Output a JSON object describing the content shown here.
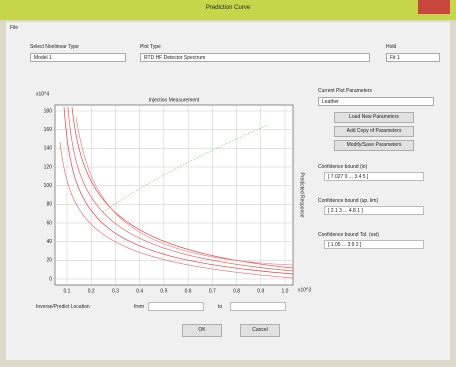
{
  "window": {
    "title": "Prediction Curve",
    "menu": [
      "File"
    ]
  },
  "controls": {
    "type_label": "Select Nonlinear Type",
    "type_value": "Model 1",
    "plot_label": "Plot Type",
    "plot_value": "RTD HF Detector Spectrum",
    "hold_label": "Hold",
    "hold_value": "Fit 1"
  },
  "plot": {
    "title": "Injection Measurement",
    "y_exponent": "x10^4",
    "x_exponent": "x10^3",
    "y_label": "Predicted Response",
    "yticks": [
      "180",
      "160",
      "140",
      "120",
      "100",
      "80",
      "60",
      "40",
      "20",
      "0"
    ],
    "xticks": [
      "0.1",
      "0.2",
      "0.3",
      "0.4",
      "0.5",
      "0.6",
      "0.7",
      "0.8",
      "0.9",
      "1.0"
    ]
  },
  "panel": {
    "params_label": "Current Plot Parameters",
    "params_value": "Leather",
    "buttons": [
      "Load New Parameters",
      "Add Copy of Parameters",
      "Modify/Save Parameters"
    ],
    "bounds": [
      {
        "label": "Confidence bound (lo)",
        "value": "[ 7.027 9 ... 3.4 5 ]"
      },
      {
        "label": "Confidence bound (up. lim)",
        "value": "[ 2.1 3 ... 4.8 1 ]"
      },
      {
        "label": "Confidence bound Tol. (est)",
        "value": "[ 1.05 ... 3.9 2 ]"
      }
    ]
  },
  "footer": {
    "location_label": "Inverse/Predict Location",
    "from_label": "from",
    "to_label": "to",
    "ok": "OK",
    "cancel": "Cancel"
  }
}
